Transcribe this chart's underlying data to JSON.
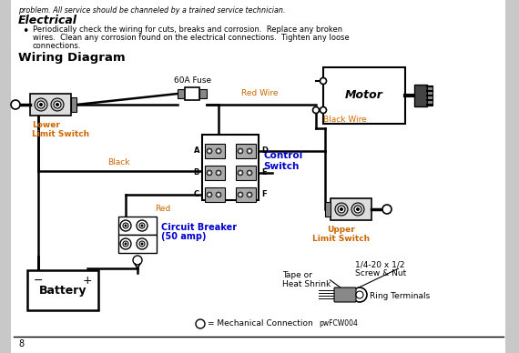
{
  "bg_color": "#e8e8e8",
  "page_bg": "#ffffff",
  "title_electrical": "Electrical",
  "bullet_text1": "Periodically check the wiring for cuts, breaks and corrosion.  Replace any broken",
  "bullet_text2": "wires.  Clean any corrosion found on the electrical connections.  Tighten any loose",
  "bullet_text3": "connections.",
  "section_title": "Wiring Diagram",
  "page_number": "8",
  "top_text": "problem. All service should be channeled by a trained service technician.",
  "label_60a_fuse": "60A Fuse",
  "label_red_wire": "Red Wire",
  "label_motor": "Motor",
  "label_black_wire": "Black Wire",
  "label_lower_limit": "Lower\nLimit Switch",
  "label_control_switch": "Control\nSwitch",
  "label_black": "Black",
  "label_red": "Red",
  "label_upper_limit": "Upper\nLimit Switch",
  "label_circuit_breaker": "Circuit Breaker",
  "label_circuit_breaker2": "(50 amp)",
  "label_battery": "Battery",
  "label_tape": "Tape or",
  "label_tape2": "Heat Shrink",
  "label_screw": "1/4-20 x 1/2",
  "label_screw2": "Screw & Nut",
  "label_ring": "Ring Terminals",
  "label_mechanical": "O= Mechanical Connection",
  "label_mech_code": "pwFCW004",
  "label_A": "A",
  "label_B": "B",
  "label_C": "C",
  "label_D": "D",
  "label_E": "E",
  "label_F": "F",
  "text_color": "#0000cc",
  "text_color2": "#cc6600"
}
